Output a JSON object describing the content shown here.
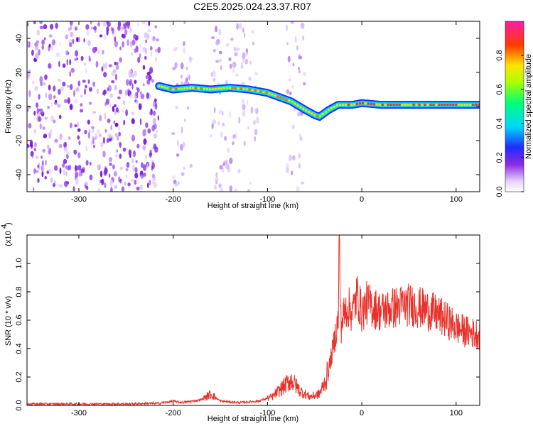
{
  "title": "C2E5.2025.024.23.37.R07",
  "chart_data": [
    {
      "type": "heatmap",
      "xlabel": "Height of straight line (km)",
      "ylabel": "Frequency (Hz)",
      "xlim": [
        -355,
        125
      ],
      "ylim": [
        -50,
        50
      ],
      "xticks": [
        -300,
        -200,
        -100,
        0,
        100
      ],
      "yticks": [
        -40,
        -20,
        0,
        20,
        40
      ],
      "xtick_labels": [
        "-300",
        "-200",
        "-100",
        "0",
        "100"
      ],
      "ytick_labels": [
        "-40",
        "-20",
        "0",
        "20",
        "40"
      ],
      "colorbar": {
        "label": "Normalized spectral amplitude",
        "range": [
          0,
          1
        ],
        "ticks": [
          0.0,
          0.2,
          0.4,
          0.6,
          0.8
        ],
        "tick_labels": [
          "0.0",
          "0.2",
          "0.4",
          "0.6",
          "0.8"
        ],
        "colormap": "purple-blue-cyan-green-yellow-red-magenta"
      },
      "ridge": {
        "description_points_x": [
          -215,
          -200,
          -180,
          -160,
          -140,
          -120,
          -100,
          -85,
          -75,
          -60,
          -50,
          -45,
          -35,
          -25,
          -10,
          0,
          20,
          50,
          80,
          100,
          125
        ],
        "description_points_y": [
          12,
          10,
          11,
          10,
          11,
          10,
          8,
          5,
          3,
          -2,
          -5,
          -6,
          -2,
          1,
          1,
          2,
          1,
          1,
          1,
          1,
          1
        ],
        "amplitude_start_x": -215
      },
      "noise_bands_x": [
        [
          -355,
          -215
        ],
        [
          -200,
          -180
        ],
        [
          -160,
          -110
        ],
        [
          -80,
          -60
        ]
      ]
    },
    {
      "type": "line",
      "xlabel": "Height of straight line (km)",
      "ylabel": "SNR (10 * v/v)",
      "y_multiplier": "(x10",
      "y_multiplier_exp": "4",
      "xlim": [
        -355,
        125
      ],
      "ylim": [
        0,
        1.2
      ],
      "xticks": [
        -300,
        -200,
        -100,
        0,
        100
      ],
      "yticks": [
        0.0,
        0.2,
        0.4,
        0.6,
        0.8,
        1.0
      ],
      "xtick_labels": [
        "-300",
        "-200",
        "-100",
        "0",
        "100"
      ],
      "ytick_labels": [
        "0.0",
        "0.2",
        "0.4",
        "0.6",
        "0.8",
        "1.0"
      ],
      "series": [
        {
          "color": "#e8322b",
          "x": [
            -355,
            -300,
            -250,
            -215,
            -200,
            -190,
            -170,
            -160,
            -150,
            -130,
            -110,
            -95,
            -85,
            -75,
            -65,
            -55,
            -45,
            -38,
            -32,
            -28,
            -25,
            -24,
            -22,
            -20,
            -15,
            -10,
            -5,
            0,
            5,
            10,
            20,
            30,
            40,
            50,
            60,
            70,
            80,
            90,
            100,
            110,
            125
          ],
          "y": [
            0.01,
            0.01,
            0.01,
            0.015,
            0.03,
            0.02,
            0.04,
            0.08,
            0.03,
            0.02,
            0.03,
            0.06,
            0.12,
            0.18,
            0.1,
            0.06,
            0.08,
            0.18,
            0.35,
            0.5,
            0.6,
            1.18,
            0.55,
            0.62,
            0.7,
            0.65,
            0.78,
            0.65,
            0.72,
            0.7,
            0.66,
            0.68,
            0.7,
            0.71,
            0.69,
            0.67,
            0.64,
            0.6,
            0.55,
            0.52,
            0.5
          ]
        }
      ]
    }
  ]
}
